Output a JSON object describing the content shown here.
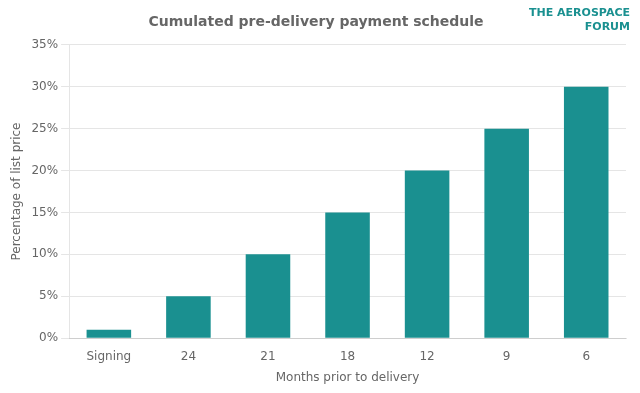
{
  "chart_data": {
    "type": "bar",
    "title": "Cumulated pre-delivery payment schedule",
    "categories": [
      "Signing",
      "24",
      "21",
      "18",
      "12",
      "9",
      "6"
    ],
    "values": [
      1,
      5,
      10,
      15,
      20,
      25,
      30
    ],
    "color": "#1a9090",
    "xlabel": "Months prior to delivery",
    "ylabel": "Percentage of list price",
    "ylim": [
      0,
      35
    ],
    "yticks": [
      {
        "value": 0,
        "label": "0%"
      },
      {
        "value": 5,
        "label": "5%"
      },
      {
        "value": 10,
        "label": "10%"
      },
      {
        "value": 15,
        "label": "15%"
      },
      {
        "value": 20,
        "label": "20%"
      },
      {
        "value": 25,
        "label": "25%"
      },
      {
        "value": 30,
        "label": "30%"
      },
      {
        "value": 35,
        "label": "35%"
      }
    ],
    "grid": true,
    "annotations": [
      {
        "text": "THE AEROSPACE\nFORUM",
        "color": "#1a9090"
      }
    ]
  }
}
